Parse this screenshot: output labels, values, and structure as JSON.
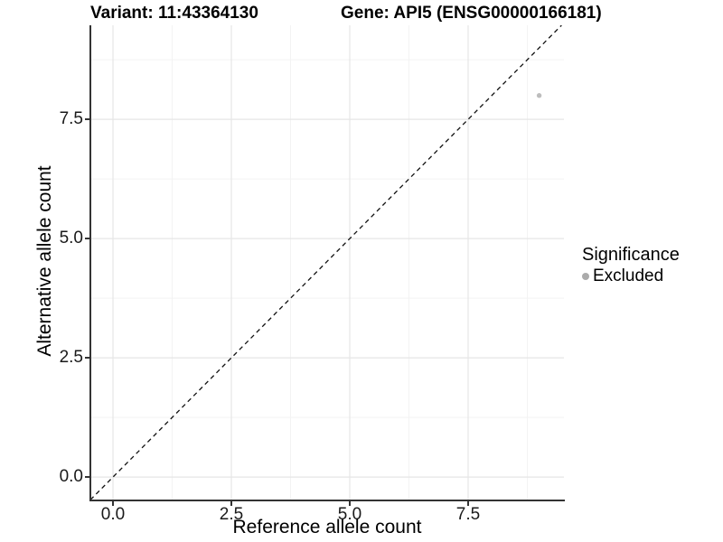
{
  "chart_data": {
    "type": "scatter",
    "title_left": "Variant: 11:43364130",
    "title_right": "Gene: API5 (ENSG00000166181)",
    "xlabel": "Reference allele count",
    "ylabel": "Alternative allele count",
    "xlim": [
      -0.477,
      9.523
    ],
    "ylim": [
      -0.49,
      9.472
    ],
    "xticks": [
      0,
      2.5,
      5,
      7.5
    ],
    "xtick_labels": [
      "0.0",
      "2.5",
      "5.0",
      "7.5"
    ],
    "yticks": [
      0,
      2.5,
      5,
      7.5
    ],
    "ytick_labels": [
      "0.0",
      "2.5",
      "5.0",
      "7.5"
    ],
    "minor_xticks": [
      1.25,
      3.75,
      6.25,
      8.75
    ],
    "minor_yticks": [
      1.25,
      3.75,
      6.25,
      8.75
    ],
    "grid": "on",
    "identity_line": {
      "type": "abline",
      "slope": 1,
      "intercept": 0,
      "style": "dashed",
      "color": "#111111"
    },
    "series": [
      {
        "name": "Excluded",
        "color": "#bdbdbd",
        "points": [
          {
            "x": 9,
            "y": 8
          }
        ]
      }
    ],
    "legend": {
      "title": "Significance",
      "position": "right",
      "items": [
        {
          "label": "Excluded",
          "color": "#ababab"
        }
      ]
    }
  },
  "colors": {
    "background": "#ffffff",
    "grid_major": "#e6e6e6",
    "grid_minor": "#f3f3f3",
    "axis_line": "#333333",
    "tick_label": "#1a1a1a"
  }
}
